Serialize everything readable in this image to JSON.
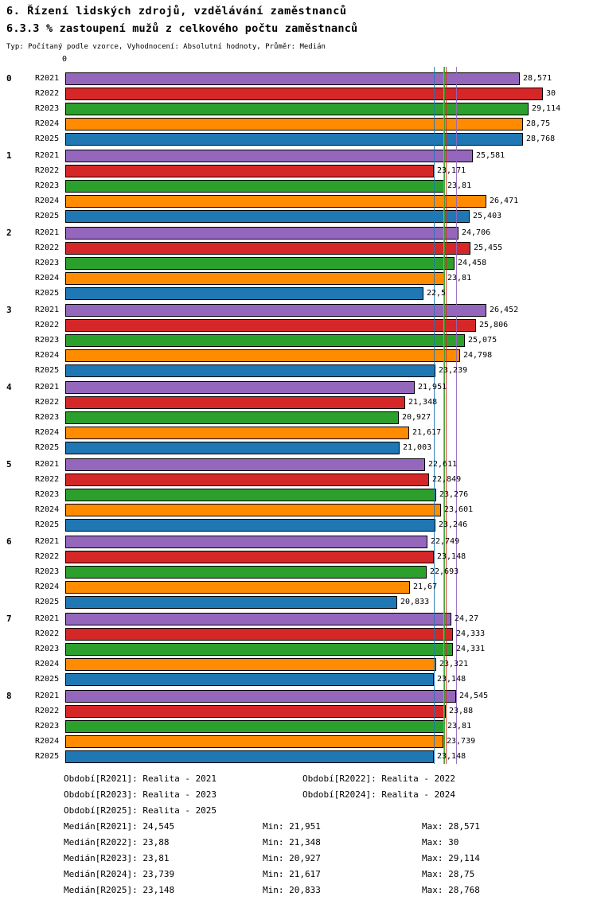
{
  "header": {
    "title": "6. Řízení lidských zdrojů, vzdělávání zaměstnanců",
    "subtitle": "6.3.3 % zastoupení mužů z celkového počtu zaměstnanců",
    "meta": "Typ: Počítaný podle vzorce, Vyhodnocení: Absolutní hodnoty, Průměr: Medián"
  },
  "chart_data": {
    "type": "bar",
    "orientation": "horizontal",
    "x_origin_label": "0",
    "xlim": [
      0,
      30
    ],
    "grid": false,
    "value_format": "czech-decimal-comma",
    "categories": [
      "0",
      "1",
      "2",
      "3",
      "4",
      "5",
      "6",
      "7",
      "8"
    ],
    "series": [
      {
        "name": "R2021",
        "color": "#9467bd",
        "median": 24.545,
        "values": [
          28.571,
          25.581,
          24.706,
          26.452,
          21.951,
          22.611,
          22.749,
          24.27,
          24.545
        ]
      },
      {
        "name": "R2022",
        "color": "#d62728",
        "median": 23.88,
        "values": [
          30,
          23.171,
          25.455,
          25.806,
          21.348,
          22.849,
          23.148,
          24.333,
          23.88
        ]
      },
      {
        "name": "R2023",
        "color": "#2ca02c",
        "median": 23.81,
        "values": [
          29.114,
          23.81,
          24.458,
          25.075,
          20.927,
          23.276,
          22.693,
          24.331,
          23.81
        ]
      },
      {
        "name": "R2024",
        "color": "#ff8c00",
        "median": 23.739,
        "values": [
          28.75,
          26.471,
          23.81,
          24.798,
          21.617,
          23.601,
          21.67,
          23.321,
          23.739
        ]
      },
      {
        "name": "R2025",
        "color": "#1f77b4",
        "median": 23.148,
        "values": [
          28.768,
          25.403,
          22.5,
          23.239,
          21.003,
          23.246,
          20.833,
          23.148,
          23.148
        ]
      }
    ]
  },
  "legend": {
    "rows": [
      [
        "Období[R2021]: Realita - 2021",
        "Období[R2022]: Realita - 2022"
      ],
      [
        "Období[R2023]: Realita - 2023",
        "Období[R2024]: Realita - 2024"
      ],
      [
        "Období[R2025]: Realita - 2025",
        ""
      ]
    ]
  },
  "stats": {
    "rows": [
      {
        "median": "Medián[R2021]: 24,545",
        "min": "Min: 21,951",
        "max": "Max: 28,571"
      },
      {
        "median": "Medián[R2022]: 23,88",
        "min": "Min: 21,348",
        "max": "Max: 30"
      },
      {
        "median": "Medián[R2023]: 23,81",
        "min": "Min: 20,927",
        "max": "Max: 29,114"
      },
      {
        "median": "Medián[R2024]: 23,739",
        "min": "Min: 21,617",
        "max": "Max: 28,75"
      },
      {
        "median": "Medián[R2025]: 23,148",
        "min": "Min: 20,833",
        "max": "Max: 28,768"
      }
    ]
  }
}
